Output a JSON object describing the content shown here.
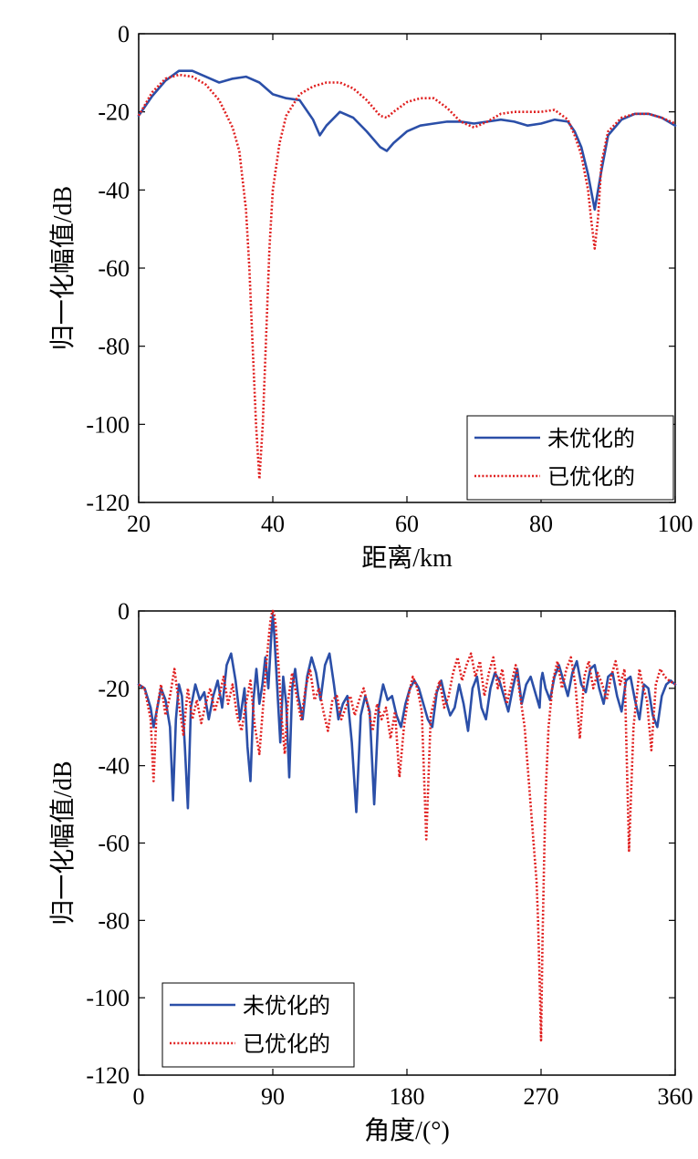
{
  "chart_data": [
    {
      "type": "line",
      "xlabel": "距离/km",
      "ylabel": "归一化幅值/dB",
      "xlim": [
        20,
        100
      ],
      "ylim": [
        -120,
        0
      ],
      "xticks": [
        "20",
        "40",
        "60",
        "80",
        "100"
      ],
      "yticks": [
        "0",
        "-20",
        "-40",
        "-60",
        "-80",
        "-100",
        "-120"
      ],
      "grid": false,
      "legend_position": "bottom-right",
      "series": [
        {
          "name": "未优化的",
          "color": "#2b4fa8",
          "style": "solid",
          "x": [
            20,
            22,
            24,
            26,
            28,
            30,
            32,
            34,
            36,
            38,
            40,
            42,
            44,
            46,
            47,
            48,
            50,
            52,
            54,
            56,
            57,
            58,
            60,
            62,
            64,
            66,
            68,
            70,
            72,
            74,
            76,
            78,
            80,
            82,
            84,
            85,
            86,
            87,
            88,
            89,
            90,
            92,
            94,
            96,
            98,
            100
          ],
          "y": [
            -21,
            -16,
            -12,
            -9.5,
            -9.5,
            -11,
            -12.5,
            -11.5,
            -11,
            -12.5,
            -15.5,
            -16.5,
            -17,
            -22,
            -26,
            -23.5,
            -20,
            -21.5,
            -25,
            -29,
            -30,
            -28,
            -25,
            -23.5,
            -23,
            -22.5,
            -22.5,
            -23,
            -22.5,
            -22,
            -22.5,
            -23.5,
            -23,
            -22,
            -22.5,
            -25,
            -29,
            -36,
            -45,
            -35,
            -26,
            -22,
            -20.5,
            -20.5,
            -21.5,
            -23.5
          ]
        },
        {
          "name": "已优化的",
          "color": "#e02020",
          "style": "dotted",
          "x": [
            20,
            22,
            24,
            26,
            28,
            30,
            32,
            34,
            35,
            36,
            36.5,
            37,
            37.5,
            38,
            38.5,
            39,
            39.5,
            40,
            41,
            42,
            44,
            46,
            48,
            50,
            52,
            54,
            56,
            57,
            58,
            60,
            62,
            64,
            66,
            68,
            70,
            72,
            74,
            76,
            78,
            80,
            82,
            84,
            85,
            86,
            87,
            87.5,
            88,
            88.5,
            89,
            90,
            92,
            94,
            96,
            98,
            100
          ],
          "y": [
            -21,
            -15,
            -11.5,
            -10.5,
            -11,
            -13,
            -17,
            -24,
            -30,
            -45,
            -60,
            -80,
            -100,
            -114,
            -100,
            -78,
            -55,
            -40,
            -28,
            -21,
            -15.5,
            -13.5,
            -12.5,
            -12.5,
            -14,
            -17,
            -21,
            -21.5,
            -20,
            -17.5,
            -16.5,
            -16.5,
            -19,
            -22.5,
            -24,
            -22.5,
            -20.5,
            -20,
            -20,
            -20,
            -19.5,
            -22,
            -26,
            -31,
            -40,
            -48,
            -55,
            -47,
            -33,
            -25,
            -21.5,
            -20.5,
            -20.5,
            -21.5,
            -23
          ]
        }
      ]
    },
    {
      "type": "line",
      "xlabel": "角度/(°)",
      "ylabel": "归一化幅值/dB",
      "xlim": [
        0,
        360
      ],
      "ylim": [
        -120,
        0
      ],
      "xticks": [
        "0",
        "90",
        "180",
        "270",
        "360"
      ],
      "yticks": [
        "0",
        "-20",
        "-40",
        "-60",
        "-80",
        "-100",
        "-120"
      ],
      "grid": false,
      "legend_position": "bottom-left",
      "series": [
        {
          "name": "未优化的",
          "color": "#2b4fa8",
          "style": "solid",
          "x": [
            0,
            4,
            8,
            10,
            12,
            15,
            18,
            21,
            23,
            25,
            27,
            29,
            31,
            33,
            35,
            38,
            41,
            44,
            47,
            50,
            53,
            56,
            59,
            62,
            65,
            68,
            71,
            73,
            75,
            77,
            79,
            81,
            83,
            85,
            87,
            89,
            90,
            91,
            93,
            95,
            97,
            99,
            101,
            103,
            105,
            107,
            110,
            113,
            116,
            119,
            122,
            125,
            128,
            131,
            134,
            137,
            140,
            143,
            146,
            149,
            152,
            155,
            158,
            161,
            164,
            167,
            170,
            173,
            176,
            179,
            182,
            185,
            188,
            191,
            194,
            197,
            200,
            203,
            206,
            209,
            212,
            215,
            218,
            221,
            224,
            227,
            230,
            233,
            236,
            239,
            242,
            245,
            248,
            251,
            254,
            257,
            260,
            263,
            266,
            269,
            270,
            271,
            273,
            276,
            279,
            282,
            285,
            288,
            291,
            294,
            297,
            300,
            303,
            306,
            309,
            312,
            315,
            318,
            321,
            324,
            327,
            330,
            333,
            336,
            339,
            342,
            345,
            348,
            351,
            354,
            357,
            360
          ],
          "y": [
            -19,
            -20,
            -25,
            -30,
            -26,
            -20,
            -23,
            -30,
            -49,
            -28,
            -19,
            -22,
            -35,
            -51,
            -25,
            -19,
            -23,
            -21,
            -28,
            -22,
            -18,
            -25,
            -14,
            -11,
            -18,
            -28,
            -20,
            -35,
            -44,
            -23,
            -15,
            -24,
            -19,
            -12,
            -20,
            -6,
            -1,
            -6,
            -20,
            -34,
            -17,
            -24,
            -43,
            -20,
            -15,
            -22,
            -28,
            -17,
            -12,
            -16,
            -23,
            -14,
            -11,
            -19,
            -28,
            -24,
            -22,
            -34,
            -52,
            -27,
            -22,
            -26,
            -50,
            -25,
            -19,
            -23,
            -22,
            -27,
            -30,
            -24,
            -20,
            -18,
            -20,
            -24,
            -28,
            -30,
            -21,
            -18,
            -23,
            -27,
            -25,
            -19,
            -24,
            -31,
            -20,
            -17,
            -25,
            -28,
            -20,
            -16,
            -18,
            -22,
            -26,
            -20,
            -15,
            -24,
            -19,
            -17,
            -21,
            -25,
            -18,
            -16,
            -20,
            -23,
            -17,
            -14,
            -18,
            -22,
            -16,
            -13,
            -19,
            -21,
            -15,
            -14,
            -20,
            -24,
            -17,
            -16,
            -22,
            -26,
            -18,
            -17,
            -23,
            -28,
            -19,
            -20,
            -27,
            -30,
            -22,
            -19,
            -18,
            -19
          ]
        },
        {
          "name": "已优化的",
          "color": "#e02020",
          "style": "dotted",
          "x": [
            0,
            4,
            8,
            10,
            12,
            15,
            18,
            21,
            24,
            27,
            30,
            33,
            36,
            39,
            42,
            45,
            48,
            51,
            54,
            57,
            60,
            63,
            66,
            69,
            72,
            75,
            78,
            81,
            84,
            86,
            88,
            89,
            90,
            91,
            92,
            94,
            96,
            98,
            100,
            103,
            106,
            109,
            112,
            115,
            118,
            121,
            124,
            127,
            130,
            133,
            136,
            139,
            142,
            145,
            148,
            151,
            154,
            157,
            160,
            163,
            166,
            169,
            172,
            175,
            178,
            181,
            184,
            187,
            190,
            193,
            196,
            199,
            202,
            205,
            208,
            211,
            214,
            217,
            220,
            223,
            226,
            229,
            232,
            235,
            238,
            241,
            244,
            247,
            250,
            253,
            256,
            259,
            262,
            265,
            267,
            268,
            269,
            270,
            271,
            272,
            273,
            275,
            278,
            281,
            284,
            287,
            290,
            293,
            296,
            299,
            302,
            305,
            308,
            311,
            314,
            317,
            320,
            323,
            326,
            329,
            332,
            335,
            336,
            338,
            341,
            344,
            347,
            350,
            353,
            356,
            360
          ],
          "y": [
            -19,
            -20,
            -28,
            -44,
            -26,
            -19,
            -27,
            -22,
            -15,
            -24,
            -32,
            -20,
            -28,
            -23,
            -29,
            -24,
            -20,
            -26,
            -22,
            -17,
            -24,
            -19,
            -27,
            -31,
            -24,
            -18,
            -30,
            -37,
            -22,
            -12,
            -4,
            -1,
            0,
            -1,
            -4,
            -15,
            -28,
            -37,
            -24,
            -16,
            -22,
            -28,
            -20,
            -15,
            -23,
            -20,
            -26,
            -31,
            -23,
            -22,
            -28,
            -25,
            -22,
            -27,
            -23,
            -20,
            -25,
            -31,
            -24,
            -28,
            -25,
            -33,
            -26,
            -43,
            -30,
            -22,
            -17,
            -20,
            -26,
            -59,
            -27,
            -22,
            -18,
            -25,
            -22,
            -16,
            -12,
            -18,
            -14,
            -11,
            -17,
            -13,
            -22,
            -16,
            -12,
            -20,
            -15,
            -24,
            -19,
            -14,
            -22,
            -30,
            -45,
            -60,
            -70,
            -80,
            -95,
            -111,
            -85,
            -65,
            -48,
            -30,
            -18,
            -13,
            -20,
            -15,
            -12,
            -19,
            -33,
            -17,
            -13,
            -20,
            -16,
            -19,
            -23,
            -17,
            -13,
            -19,
            -15,
            -62,
            -30,
            -19,
            -15,
            -19,
            -23,
            -36,
            -19,
            -15,
            -17,
            -18,
            -19
          ]
        }
      ]
    }
  ]
}
